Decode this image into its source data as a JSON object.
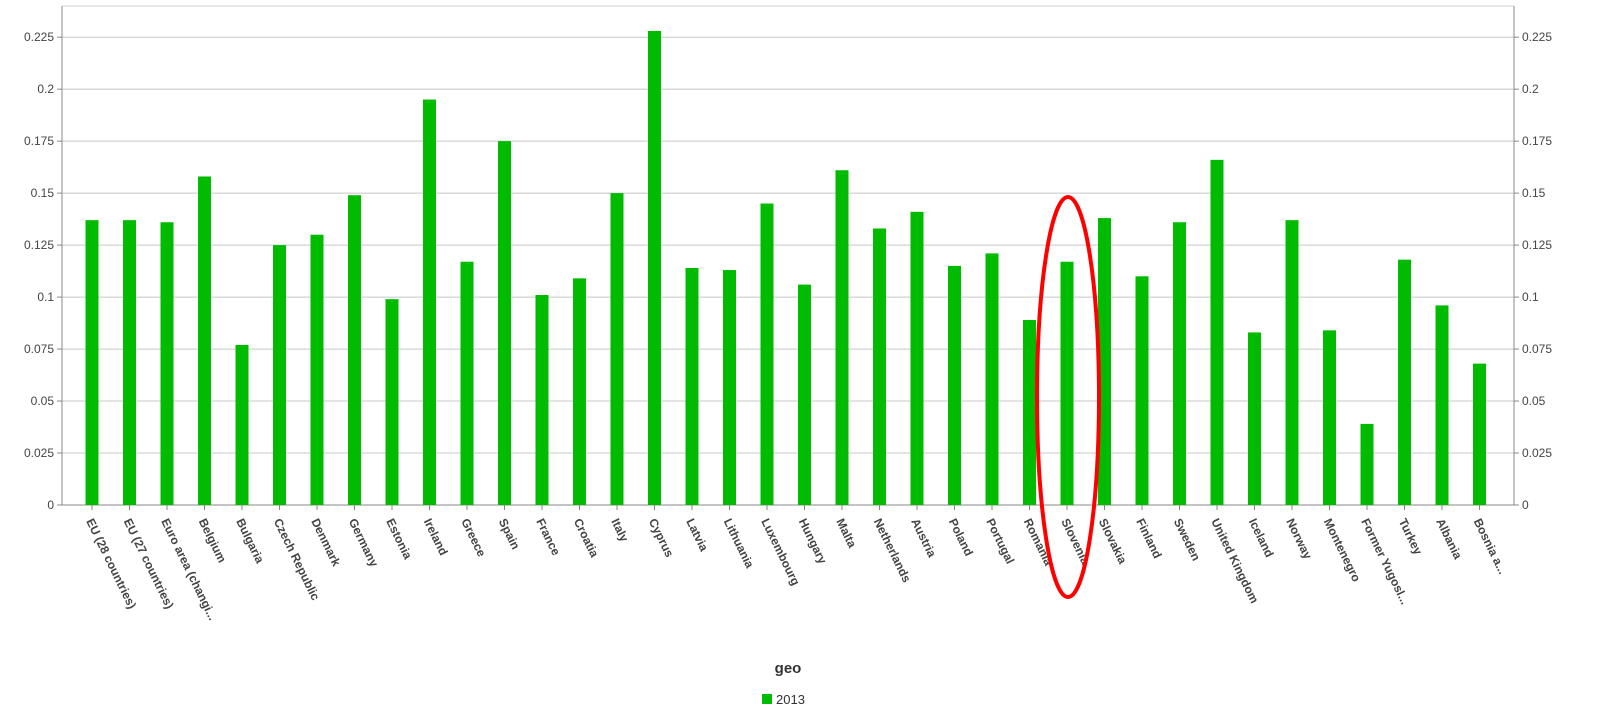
{
  "chart_data": {
    "type": "bar",
    "xlabel": "geo",
    "ylim": [
      0,
      0.24
    ],
    "yticks": [
      "0",
      "0.025",
      "0.05",
      "0.075",
      "0.1",
      "0.125",
      "0.15",
      "0.175",
      "0.2",
      "0.225"
    ],
    "grid": true,
    "legend_position": "bottom-center",
    "bar_color": "#00bb00",
    "highlight_color": "#ff0000",
    "highlighted_category": "Slovenia",
    "categories": [
      "EU (28 countries)",
      "EU (27 countries)",
      "Euro area (changi...",
      "Belgium",
      "Bulgaria",
      "Czech Republic",
      "Denmark",
      "Germany",
      "Estonia",
      "Ireland",
      "Greece",
      "Spain",
      "France",
      "Croatia",
      "Italy",
      "Cyprus",
      "Latvia",
      "Lithuania",
      "Luxembourg",
      "Hungary",
      "Malta",
      "Netherlands",
      "Austria",
      "Poland",
      "Portugal",
      "Romania",
      "Slovenia",
      "Slovakia",
      "Finland",
      "Sweden",
      "United Kingdom",
      "Iceland",
      "Norway",
      "Montenegro",
      "Former Yugosl...",
      "Turkey",
      "Albania",
      "Bosnia a..."
    ],
    "series": [
      {
        "name": "2013",
        "values": [
          0.137,
          0.137,
          0.136,
          0.158,
          0.077,
          0.125,
          0.13,
          0.149,
          0.099,
          0.195,
          0.117,
          0.175,
          0.101,
          0.109,
          0.15,
          0.228,
          0.114,
          0.113,
          0.145,
          0.106,
          0.161,
          0.133,
          0.141,
          0.115,
          0.121,
          0.089,
          0.117,
          0.138,
          0.11,
          0.136,
          0.166,
          0.083,
          0.137,
          0.084,
          0.039,
          0.118,
          0.096,
          0.068
        ]
      }
    ]
  }
}
